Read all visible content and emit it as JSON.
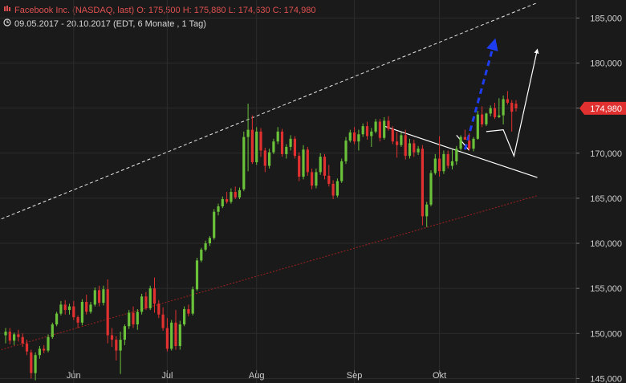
{
  "header": {
    "line1_icon": "candlestick-icon",
    "line1": "Facebook Inc. (NASDAQ, last)  O: 175,500  H: 175,880  L: 174,630  C: 174,980",
    "line2_icon": "clock-icon",
    "line2": "09.05.2017 - 20.10.2017   (EDT, 6 Monate , 1 Tag)"
  },
  "colors": {
    "background": "#1a1a1a",
    "grid": "#2c2c2c",
    "up": "#6ac13a",
    "down": "#e03030",
    "last_badge": "#e03030",
    "upper_channel": "#e8e8e8",
    "lower_channel": "#a02020",
    "projection_blue": "#1e3df0",
    "projection_white": "#ffffff"
  },
  "chart_data": {
    "type": "candlestick",
    "ylim": [
      144.5,
      187
    ],
    "y_ticks": [
      {
        "value": 185,
        "label": "185,000"
      },
      {
        "value": 180,
        "label": "180,000"
      },
      {
        "value": 175,
        "label": "175,000"
      },
      {
        "value": 170,
        "label": "170,000"
      },
      {
        "value": 165,
        "label": "165,000"
      },
      {
        "value": 160,
        "label": "160,000"
      },
      {
        "value": 155,
        "label": "155,000"
      },
      {
        "value": 150,
        "label": "150,000"
      },
      {
        "value": 145,
        "label": "145,000"
      }
    ],
    "x_ticks": [
      {
        "index": 16,
        "label": "Jun"
      },
      {
        "index": 38,
        "label": "Jul"
      },
      {
        "index": 59,
        "label": "Aug"
      },
      {
        "index": 82,
        "label": "Sep"
      },
      {
        "index": 102,
        "label": "Okt"
      }
    ],
    "last_value": 174.98,
    "last_label": "174,980",
    "candles": [
      [
        149.8,
        150.6,
        148.9,
        150.2
      ],
      [
        150.2,
        150.6,
        148.8,
        149.2
      ],
      [
        149.2,
        150.1,
        148.7,
        149.9
      ],
      [
        149.9,
        150.4,
        149.1,
        149.6
      ],
      [
        149.6,
        150.0,
        148.5,
        148.9
      ],
      [
        148.9,
        149.3,
        147.6,
        148.0
      ],
      [
        147.9,
        148.2,
        145.0,
        145.6
      ],
      [
        145.6,
        147.9,
        144.8,
        147.6
      ],
      [
        147.6,
        148.6,
        147.2,
        148.3
      ],
      [
        148.3,
        148.7,
        147.8,
        148.1
      ],
      [
        148.1,
        149.9,
        147.9,
        149.6
      ],
      [
        149.6,
        151.2,
        149.4,
        151.0
      ],
      [
        151.0,
        152.4,
        150.8,
        152.2
      ],
      [
        152.2,
        153.6,
        152.0,
        153.2
      ],
      [
        153.2,
        153.7,
        152.1,
        152.6
      ],
      [
        152.6,
        153.3,
        152.1,
        153.0
      ],
      [
        153.0,
        153.6,
        151.5,
        151.8
      ],
      [
        151.8,
        152.0,
        150.6,
        151.2
      ],
      [
        151.2,
        153.8,
        150.9,
        153.5
      ],
      [
        153.5,
        154.3,
        152.1,
        152.4
      ],
      [
        152.4,
        153.5,
        152.2,
        153.2
      ],
      [
        153.2,
        155.1,
        153.0,
        154.8
      ],
      [
        154.8,
        155.3,
        153.0,
        153.4
      ],
      [
        153.4,
        155.3,
        153.1,
        154.9
      ],
      [
        154.9,
        156.0,
        148.9,
        149.8
      ],
      [
        149.8,
        150.6,
        148.5,
        149.3
      ],
      [
        149.3,
        149.7,
        147.0,
        148.1
      ],
      [
        148.1,
        150.2,
        145.5,
        149.3
      ],
      [
        149.3,
        151.0,
        148.7,
        150.8
      ],
      [
        150.8,
        152.6,
        150.5,
        152.3
      ],
      [
        152.3,
        153.0,
        150.6,
        151.0
      ],
      [
        151.0,
        152.7,
        150.4,
        152.4
      ],
      [
        152.4,
        154.4,
        152.1,
        154.1
      ],
      [
        154.1,
        154.6,
        152.6,
        152.8
      ],
      [
        152.8,
        155.3,
        152.6,
        155.0
      ],
      [
        155.0,
        156.2,
        152.3,
        153.3
      ],
      [
        153.3,
        153.7,
        151.7,
        152.1
      ],
      [
        152.1,
        152.9,
        150.3,
        150.6
      ],
      [
        150.6,
        151.7,
        148.0,
        148.3
      ],
      [
        148.3,
        151.5,
        148.1,
        151.2
      ],
      [
        151.2,
        152.6,
        148.2,
        148.6
      ],
      [
        148.6,
        151.4,
        148.2,
        151.0
      ],
      [
        151.0,
        153.0,
        150.8,
        152.7
      ],
      [
        152.7,
        153.2,
        151.9,
        152.2
      ],
      [
        152.2,
        155.2,
        152.0,
        154.9
      ],
      [
        154.9,
        158.4,
        154.7,
        158.1
      ],
      [
        158.1,
        159.5,
        157.9,
        159.3
      ],
      [
        159.3,
        160.3,
        159.1,
        160.0
      ],
      [
        160.0,
        160.8,
        159.7,
        160.6
      ],
      [
        160.6,
        163.8,
        160.4,
        163.5
      ],
      [
        163.5,
        164.4,
        163.1,
        164.1
      ],
      [
        164.1,
        165.2,
        163.9,
        164.9
      ],
      [
        164.9,
        165.7,
        164.4,
        164.6
      ],
      [
        164.6,
        166.1,
        164.4,
        165.7
      ],
      [
        165.7,
        166.3,
        164.9,
        165.1
      ],
      [
        165.1,
        166.2,
        164.9,
        165.9
      ],
      [
        166.0,
        172.4,
        165.8,
        171.8
      ],
      [
        171.8,
        175.5,
        168.0,
        172.6
      ],
      [
        172.6,
        174.2,
        168.8,
        169.0
      ],
      [
        169.0,
        172.9,
        168.7,
        172.4
      ],
      [
        172.4,
        172.8,
        169.6,
        170.3
      ],
      [
        170.3,
        170.6,
        167.9,
        168.6
      ],
      [
        168.6,
        170.5,
        168.3,
        170.1
      ],
      [
        170.1,
        171.6,
        169.9,
        171.3
      ],
      [
        171.3,
        172.9,
        171.0,
        172.4
      ],
      [
        172.4,
        172.7,
        169.6,
        169.9
      ],
      [
        169.9,
        171.0,
        169.4,
        170.7
      ],
      [
        170.7,
        172.0,
        170.3,
        171.6
      ],
      [
        171.6,
        171.9,
        169.4,
        169.7
      ],
      [
        169.7,
        170.1,
        166.9,
        167.4
      ],
      [
        167.4,
        170.9,
        167.1,
        170.4
      ],
      [
        170.4,
        170.7,
        167.5,
        167.9
      ],
      [
        167.9,
        168.3,
        166.0,
        166.4
      ],
      [
        166.4,
        168.3,
        166.1,
        167.9
      ],
      [
        167.9,
        170.0,
        167.6,
        169.6
      ],
      [
        169.6,
        169.9,
        167.1,
        167.5
      ],
      [
        167.5,
        168.7,
        166.3,
        166.6
      ],
      [
        166.6,
        167.0,
        164.9,
        165.3
      ],
      [
        165.3,
        167.2,
        165.1,
        166.9
      ],
      [
        166.9,
        169.4,
        166.7,
        169.1
      ],
      [
        169.1,
        171.8,
        168.8,
        171.4
      ],
      [
        171.4,
        172.6,
        171.2,
        172.3
      ],
      [
        172.3,
        172.9,
        171.0,
        171.3
      ],
      [
        171.3,
        172.6,
        170.3,
        172.1
      ],
      [
        172.1,
        173.3,
        171.8,
        173.0
      ],
      [
        173.0,
        173.5,
        171.5,
        171.9
      ],
      [
        171.9,
        172.8,
        170.7,
        172.4
      ],
      [
        172.4,
        173.8,
        172.2,
        173.5
      ],
      [
        173.5,
        173.8,
        171.3,
        171.7
      ],
      [
        171.7,
        174.0,
        171.5,
        173.6
      ],
      [
        173.6,
        174.1,
        172.5,
        172.7
      ],
      [
        172.7,
        173.0,
        171.0,
        171.3
      ],
      [
        171.3,
        172.4,
        169.5,
        170.9
      ],
      [
        170.9,
        172.3,
        170.7,
        172.0
      ],
      [
        172.0,
        172.6,
        169.3,
        169.7
      ],
      [
        169.7,
        171.6,
        169.4,
        171.1
      ],
      [
        171.1,
        171.5,
        169.6,
        170.1
      ],
      [
        170.1,
        170.8,
        169.8,
        170.5
      ],
      [
        170.5,
        170.9,
        162.0,
        163.0
      ],
      [
        163.0,
        164.6,
        161.8,
        164.3
      ],
      [
        164.3,
        168.1,
        164.1,
        167.8
      ],
      [
        167.8,
        169.9,
        167.6,
        169.4
      ],
      [
        169.4,
        171.9,
        167.4,
        168.0
      ],
      [
        168.0,
        170.3,
        167.7,
        169.9
      ],
      [
        169.9,
        170.3,
        168.3,
        168.6
      ],
      [
        168.6,
        170.4,
        168.2,
        169.1
      ],
      [
        169.1,
        170.8,
        168.7,
        170.5
      ],
      [
        170.5,
        172.0,
        170.3,
        171.8
      ],
      [
        171.8,
        172.6,
        171.6,
        171.5
      ],
      [
        171.4,
        172.2,
        170.3,
        170.5
      ],
      [
        170.5,
        171.8,
        170.2,
        171.6
      ],
      [
        171.6,
        174.7,
        171.5,
        174.3
      ],
      [
        174.3,
        175.2,
        172.9,
        173.2
      ],
      [
        173.2,
        174.5,
        173.0,
        174.4
      ],
      [
        174.4,
        175.3,
        174.1,
        175.0
      ],
      [
        175.0,
        175.6,
        173.8,
        174.0
      ],
      [
        174.0,
        176.1,
        173.9,
        174.2
      ],
      [
        174.2,
        176.4,
        173.2,
        176.0
      ],
      [
        176.0,
        176.9,
        175.4,
        175.6
      ],
      [
        175.6,
        175.9,
        172.4,
        174.6
      ],
      [
        175.5,
        175.88,
        174.63,
        174.98
      ]
    ],
    "overlays": [
      {
        "name": "upper-channel",
        "style": "white-dashed",
        "points": [
          [
            -1,
            162.7
          ],
          [
            125,
            186.7
          ]
        ]
      },
      {
        "name": "lower-channel",
        "style": "red-dotted",
        "points": [
          [
            -1,
            148.2
          ],
          [
            125,
            165.3
          ]
        ]
      },
      {
        "name": "downtrend-line",
        "style": "white-solid",
        "points": [
          [
            89,
            173.0
          ],
          [
            125,
            167.3
          ]
        ]
      },
      {
        "name": "path-down",
        "style": "white-solid",
        "points": [
          [
            106,
            172.0
          ],
          [
            109,
            170.3
          ]
        ]
      },
      {
        "name": "blue-projection",
        "style": "blue-dashed",
        "points": [
          [
            108,
            170.4
          ],
          [
            115,
            182.5
          ]
        ],
        "arrow": true
      },
      {
        "name": "white-projection",
        "style": "white-solid",
        "points": [
          [
            113,
            172.4
          ],
          [
            117,
            172.6
          ],
          [
            119.5,
            169.7
          ],
          [
            125,
            181.5
          ]
        ],
        "arrow": true
      }
    ]
  }
}
